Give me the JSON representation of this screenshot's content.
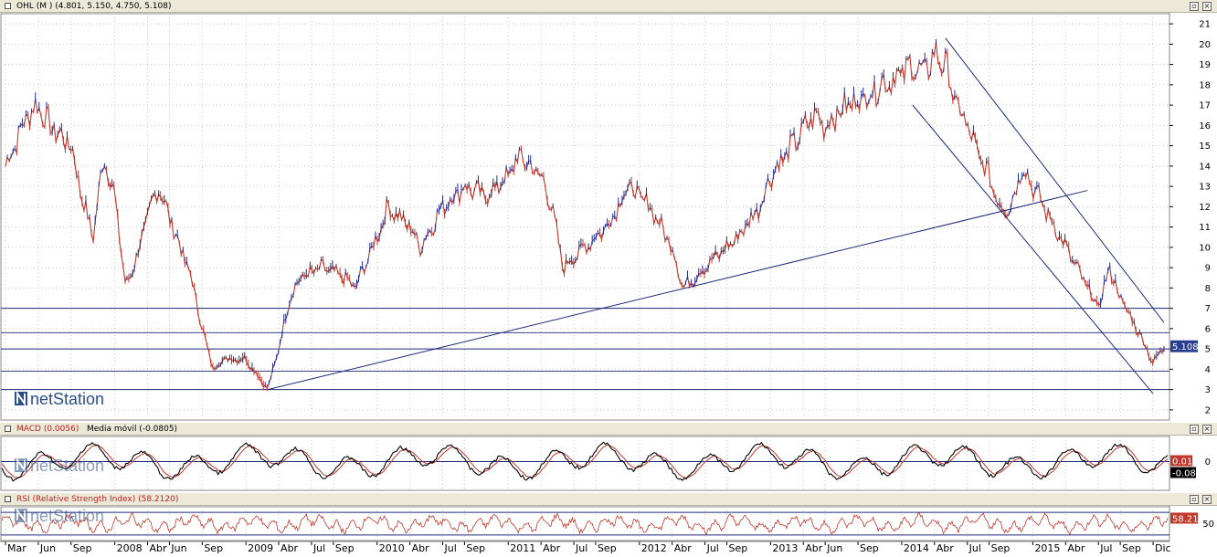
{
  "main_panel": {
    "title": "OHL (M ) (4.801, 5.150, 4.750, 5.108)",
    "price_tag": "5.108",
    "y_ticks": [
      21,
      20,
      19,
      18,
      17,
      16,
      15,
      14,
      13,
      12,
      11,
      10,
      9,
      8,
      7,
      6,
      5,
      4,
      3,
      2
    ]
  },
  "macd_panel": {
    "title": "MACD (0.0056)",
    "secondary": "Media móvil (-0.0805)",
    "tag1": "0.01",
    "tag2": "-0.08",
    "y_tick": "0"
  },
  "rsi_panel": {
    "title": "RSI (Relative Strength Index) (58.2120)",
    "tag": "58.21",
    "y_tick": "50"
  },
  "logo": {
    "text": "netStation"
  },
  "window_buttons": {
    "restore": "▫",
    "close": "×"
  },
  "colors": {
    "up_candle": "#1f2f8c",
    "down_candle": "#c0382b",
    "trendline": "#1a2a7a",
    "grid": "#c8c8c8",
    "header_bg": "#ece9d8",
    "tag_bg": "#2a3f8f",
    "macd_tag_bg": "#c0382b",
    "rsi_line": "#c0382b"
  },
  "x_axis": {
    "labels": [
      "Mar",
      "Jun",
      "Sep",
      "2008",
      "Abr",
      "Jun",
      "Sep",
      "2009",
      "Abr",
      "Jul",
      "Sep",
      "2010",
      "Abr",
      "Jul",
      "Sep",
      "2011",
      "Abr",
      "Jul",
      "Sep",
      "2012",
      "Abr",
      "Jul",
      "Sep",
      "2013",
      "Abr",
      "Jun",
      "Sep",
      "2014",
      "Abr",
      "Jul",
      "Sep",
      "2015",
      "Abr",
      "Jul",
      "Sep",
      "Dic"
    ]
  },
  "chart_data": {
    "type": "line",
    "title": "OHL (M )",
    "ohlc_last": {
      "open": 4.801,
      "high": 5.15,
      "low": 4.75,
      "close": 5.108
    },
    "ylim": [
      1.5,
      21.5
    ],
    "x_range": [
      "2007-03",
      "2016-01"
    ],
    "series": [
      {
        "name": "OHL",
        "x": [
          "2007-03",
          "2007-05",
          "2007-06",
          "2007-07",
          "2007-09",
          "2007-10",
          "2007-11",
          "2007-12",
          "2008-01",
          "2008-02",
          "2008-03",
          "2008-04",
          "2008-05",
          "2008-07",
          "2008-08",
          "2008-09",
          "2008-10",
          "2008-11",
          "2008-12",
          "2009-01",
          "2009-03",
          "2009-04",
          "2009-05",
          "2009-06",
          "2009-08",
          "2009-10",
          "2009-11",
          "2010-01",
          "2010-02",
          "2010-04",
          "2010-05",
          "2010-07",
          "2010-09",
          "2010-11",
          "2011-01",
          "2011-02",
          "2011-04",
          "2011-05",
          "2011-06",
          "2011-08",
          "2011-10",
          "2011-12",
          "2012-02",
          "2012-04",
          "2012-05",
          "2012-06",
          "2012-08",
          "2012-10",
          "2012-12",
          "2013-01",
          "2013-03",
          "2013-05",
          "2013-06",
          "2013-08",
          "2013-10",
          "2013-11",
          "2014-01",
          "2014-02",
          "2014-03",
          "2014-04",
          "2014-05",
          "2014-06",
          "2014-07",
          "2014-08",
          "2014-09",
          "2014-10",
          "2014-11",
          "2014-12",
          "2015-01",
          "2015-02",
          "2015-03",
          "2015-04",
          "2015-05",
          "2015-06",
          "2015-07",
          "2015-08",
          "2015-09",
          "2015-10",
          "2015-11",
          "2015-12",
          "2016-01"
        ],
        "values": [
          14.0,
          16.5,
          17.0,
          16.0,
          15.0,
          12.5,
          10.5,
          14.5,
          12.5,
          8.0,
          9.5,
          11.5,
          13.0,
          10.0,
          8.5,
          6.0,
          4.0,
          4.5,
          4.5,
          4.5,
          3.0,
          5.0,
          7.5,
          8.5,
          9.0,
          8.5,
          8.0,
          10.5,
          12.0,
          11.0,
          10.0,
          12.0,
          13.0,
          12.5,
          13.5,
          14.5,
          13.5,
          12.0,
          9.0,
          10.0,
          11.0,
          13.0,
          12.0,
          10.0,
          8.0,
          8.5,
          9.5,
          10.5,
          12.0,
          13.5,
          15.0,
          16.5,
          16.0,
          17.0,
          17.5,
          18.0,
          18.5,
          19.0,
          18.5,
          19.5,
          19.0,
          17.0,
          16.0,
          14.5,
          13.5,
          12.0,
          12.0,
          14.0,
          13.0,
          12.0,
          11.0,
          10.0,
          9.0,
          8.0,
          7.0,
          9.0,
          7.5,
          6.5,
          5.5,
          4.3,
          5.1
        ]
      }
    ],
    "horizontal_lines": [
      7.0,
      5.8,
      5.0,
      3.9,
      3.0
    ],
    "trendlines": [
      {
        "from": [
          "2009-03",
          3.0
        ],
        "to": [
          "2015-06",
          12.8
        ]
      },
      {
        "from": [
          "2014-05",
          20.3
        ],
        "to": [
          "2016-01",
          6.3
        ]
      },
      {
        "from": [
          "2014-02",
          17.0
        ],
        "to": [
          "2015-12",
          2.8
        ]
      }
    ],
    "indicators": [
      {
        "name": "MACD (0.0056)",
        "type": "line",
        "value": 0.0056,
        "last_value": 0.01,
        "signal": {
          "name": "Media móvil (-0.0805)",
          "value": -0.0805,
          "last_value": -0.08
        }
      },
      {
        "name": "RSI (Relative Strength Index) (58.2120)",
        "type": "line",
        "value": 58.212,
        "last_value": 58.21,
        "level": 50
      }
    ]
  }
}
